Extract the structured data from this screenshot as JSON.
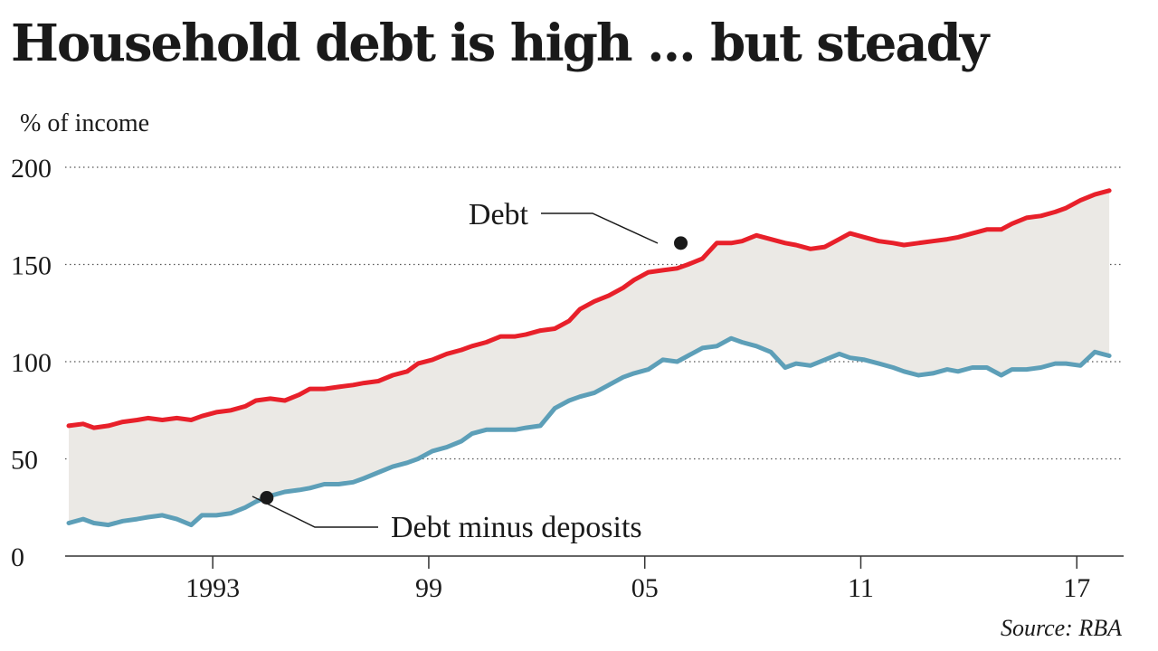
{
  "title": "Household debt is high ... but steady",
  "source": "Source: RBA",
  "chart_data": {
    "type": "line",
    "title": "Household debt is high ... but steady",
    "ylabel": "% of income",
    "xlabel": "",
    "ylim": [
      0,
      200
    ],
    "xlim": [
      1988.9,
      2018.3
    ],
    "y_ticks": [
      0,
      50,
      100,
      150,
      200
    ],
    "x_ticks": [
      {
        "value": 1993,
        "label": "1993"
      },
      {
        "value": 1999,
        "label": "99"
      },
      {
        "value": 2005,
        "label": "05"
      },
      {
        "value": 2011,
        "label": "11"
      },
      {
        "value": 2017,
        "label": "17"
      }
    ],
    "grid": "horizontal dotted",
    "fill_between": true,
    "colors": {
      "debt": "#e8202a",
      "net": "#5d9fb8",
      "band": "#ebe9e5"
    },
    "series": [
      {
        "name": "Debt",
        "x": [
          1989.0,
          1989.4,
          1989.7,
          1990.1,
          1990.5,
          1990.9,
          1991.2,
          1991.6,
          1992.0,
          1992.4,
          1992.7,
          1993.1,
          1993.5,
          1993.9,
          1994.2,
          1994.6,
          1995.0,
          1995.4,
          1995.7,
          1996.1,
          1996.5,
          1996.9,
          1997.2,
          1997.6,
          1998.0,
          1998.4,
          1998.7,
          1999.1,
          1999.5,
          1999.9,
          2000.2,
          2000.6,
          2001.0,
          2001.4,
          2001.7,
          2002.1,
          2002.5,
          2002.9,
          2003.2,
          2003.6,
          2004.0,
          2004.4,
          2004.7,
          2005.1,
          2005.5,
          2005.9,
          2006.2,
          2006.6,
          2007.0,
          2007.4,
          2007.7,
          2008.1,
          2008.5,
          2008.9,
          2009.2,
          2009.6,
          2010.0,
          2010.4,
          2010.7,
          2011.1,
          2011.5,
          2011.9,
          2012.2,
          2012.6,
          2013.0,
          2013.4,
          2013.7,
          2014.1,
          2014.5,
          2014.9,
          2015.2,
          2015.6,
          2016.0,
          2016.4,
          2016.7,
          2017.1,
          2017.5,
          2017.9
        ],
        "values": [
          67,
          68,
          66,
          67,
          69,
          70,
          71,
          70,
          71,
          70,
          72,
          74,
          75,
          77,
          80,
          81,
          80,
          83,
          86,
          86,
          87,
          88,
          89,
          90,
          93,
          95,
          99,
          101,
          104,
          106,
          108,
          110,
          113,
          113,
          114,
          116,
          117,
          121,
          127,
          131,
          134,
          138,
          142,
          146,
          147,
          148,
          150,
          153,
          161,
          161,
          162,
          165,
          163,
          161,
          160,
          158,
          159,
          163,
          166,
          164,
          162,
          161,
          160,
          161,
          162,
          163,
          164,
          166,
          168,
          168,
          171,
          174,
          175,
          177,
          179,
          183,
          186,
          188
        ]
      },
      {
        "name": "Debt minus deposits",
        "x": [
          1989.0,
          1989.4,
          1989.7,
          1990.1,
          1990.5,
          1990.9,
          1991.2,
          1991.6,
          1992.0,
          1992.4,
          1992.7,
          1993.1,
          1993.5,
          1993.9,
          1994.2,
          1994.6,
          1995.0,
          1995.4,
          1995.7,
          1996.1,
          1996.5,
          1996.9,
          1997.2,
          1997.6,
          1998.0,
          1998.4,
          1998.7,
          1999.1,
          1999.5,
          1999.9,
          2000.2,
          2000.6,
          2001.0,
          2001.4,
          2001.7,
          2002.1,
          2002.5,
          2002.9,
          2003.2,
          2003.6,
          2004.0,
          2004.4,
          2004.7,
          2005.1,
          2005.5,
          2005.9,
          2006.2,
          2006.6,
          2007.0,
          2007.4,
          2007.7,
          2008.1,
          2008.5,
          2008.9,
          2009.2,
          2009.6,
          2010.0,
          2010.4,
          2010.7,
          2011.1,
          2011.5,
          2011.9,
          2012.2,
          2012.6,
          2013.0,
          2013.4,
          2013.7,
          2014.1,
          2014.5,
          2014.9,
          2015.2,
          2015.6,
          2016.0,
          2016.4,
          2016.7,
          2017.1,
          2017.5,
          2017.9
        ],
        "values": [
          17,
          19,
          17,
          16,
          18,
          19,
          20,
          21,
          19,
          16,
          21,
          21,
          22,
          25,
          28,
          31,
          33,
          34,
          35,
          37,
          37,
          38,
          40,
          43,
          46,
          48,
          50,
          54,
          56,
          59,
          63,
          65,
          65,
          65,
          66,
          67,
          76,
          80,
          82,
          84,
          88,
          92,
          94,
          96,
          101,
          100,
          103,
          107,
          108,
          112,
          110,
          108,
          105,
          97,
          99,
          98,
          101,
          104,
          102,
          101,
          99,
          97,
          95,
          93,
          94,
          96,
          95,
          97,
          97,
          93,
          96,
          96,
          97,
          99,
          99,
          98,
          105,
          103
        ]
      }
    ],
    "annotations": [
      {
        "label": "Debt",
        "series": "Debt",
        "x": 2006.0,
        "y": 161
      },
      {
        "label": "Debt minus deposits",
        "series": "Debt minus deposits",
        "x": 1994.5,
        "y": 30
      }
    ]
  }
}
